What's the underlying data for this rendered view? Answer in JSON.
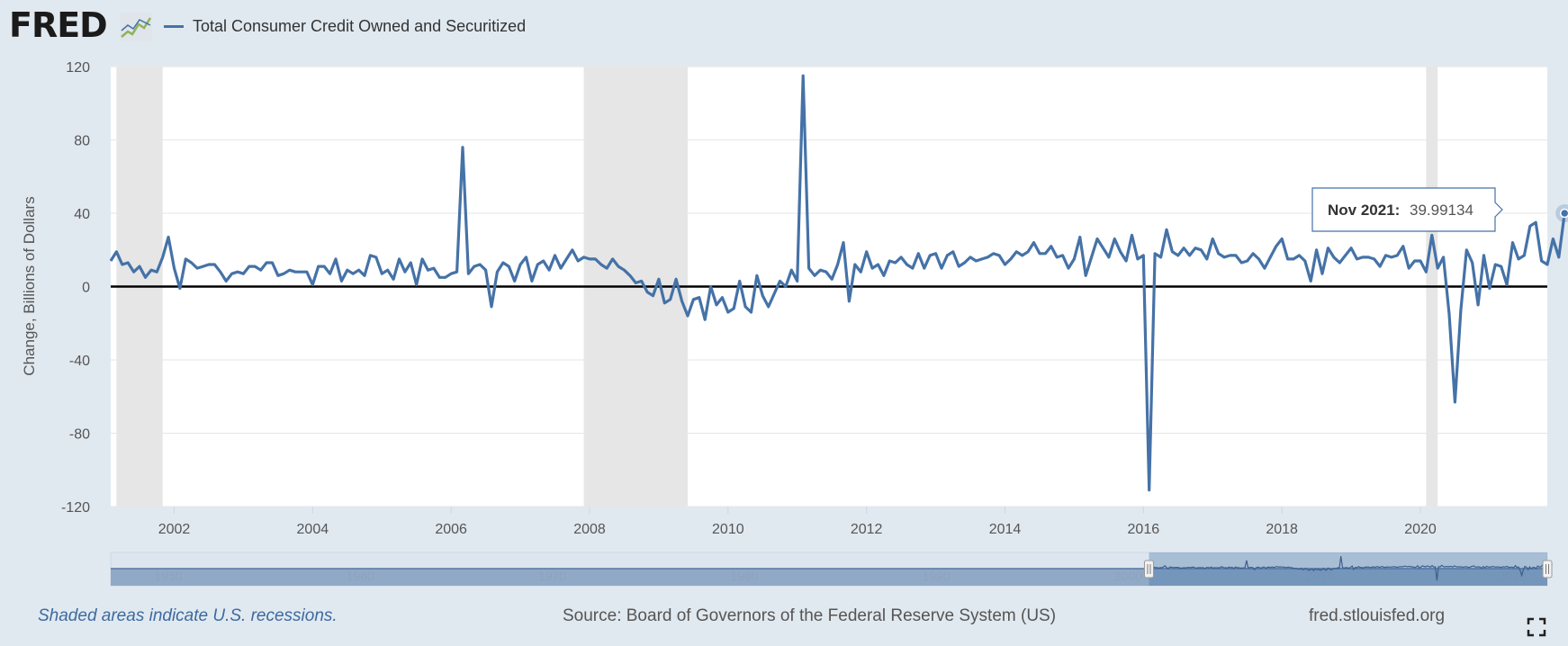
{
  "header": {
    "logo_text": "FRED",
    "logo_icon": "fred-chart-icon",
    "legend_label": "Total Consumer Credit Owned and Securitized"
  },
  "colors": {
    "background": "#e1e9f0",
    "plot_background": "#ffffff",
    "series_line": "#4572a7",
    "recession_band": "#e6e6e6",
    "zero_line": "#000000"
  },
  "chart_data": {
    "type": "line",
    "title": "",
    "xlabel": "",
    "ylabel": "Change, Billions of Dollars",
    "ylim": [
      -120,
      120
    ],
    "yticks": [
      -120,
      -80,
      -40,
      0,
      40,
      80,
      120
    ],
    "xlim": [
      "2001-02-01",
      "2021-11-01"
    ],
    "xticks": [
      "2002",
      "2004",
      "2006",
      "2008",
      "2010",
      "2012",
      "2014",
      "2016",
      "2018",
      "2020"
    ],
    "grid": true,
    "reference_line": 0,
    "recessions": [
      {
        "start": "2001-03-01",
        "end": "2001-11-01"
      },
      {
        "start": "2007-12-01",
        "end": "2009-06-01"
      },
      {
        "start": "2020-02-01",
        "end": "2020-04-01"
      }
    ],
    "series": [
      {
        "name": "Total Consumer Credit Owned and Securitized",
        "frequency": "monthly",
        "start": "2001-02-01",
        "values": [
          14,
          19,
          12,
          13,
          8,
          11,
          5,
          9,
          8,
          16,
          27,
          10,
          -1,
          15,
          13,
          10,
          11,
          12,
          12,
          8,
          3,
          7,
          8,
          7,
          11,
          11,
          9,
          13,
          13,
          6,
          7,
          9,
          8,
          8,
          8,
          1,
          11,
          11,
          7,
          15,
          3,
          9,
          7,
          9,
          6,
          17,
          16,
          7,
          9,
          4,
          15,
          8,
          13,
          1,
          15,
          9,
          10,
          5,
          5,
          7,
          8,
          76,
          7,
          11,
          12,
          9,
          -11,
          8,
          13,
          11,
          3,
          12,
          16,
          3,
          12,
          14,
          9,
          17,
          10,
          15,
          20,
          14,
          16,
          15,
          15,
          12,
          10,
          15,
          11,
          9,
          6,
          2,
          3,
          -3,
          -5,
          4,
          -9,
          -7,
          4,
          -8,
          -16,
          -7,
          -6,
          -18,
          0,
          -10,
          -6,
          -14,
          -12,
          3,
          -11,
          -14,
          6,
          -5,
          -11,
          -4,
          3,
          0,
          9,
          3,
          115,
          10,
          6,
          9,
          8,
          4,
          12,
          24,
          -8,
          12,
          8,
          19,
          10,
          12,
          6,
          14,
          13,
          16,
          12,
          10,
          18,
          10,
          17,
          18,
          10,
          17,
          19,
          11,
          13,
          16,
          14,
          15,
          16,
          18,
          17,
          12,
          15,
          19,
          17,
          19,
          24,
          18,
          18,
          22,
          16,
          17,
          10,
          15,
          27,
          6,
          16,
          26,
          21,
          16,
          26,
          19,
          14,
          28,
          15,
          17,
          -111,
          18,
          16,
          31,
          19,
          17,
          21,
          17,
          21,
          20,
          15,
          26,
          18,
          16,
          17,
          17,
          13,
          14,
          18,
          15,
          10,
          16,
          22,
          26,
          15,
          15,
          17,
          14,
          3,
          20,
          7,
          21,
          16,
          13,
          17,
          21,
          15,
          16,
          16,
          15,
          11,
          17,
          16,
          17,
          22,
          10,
          14,
          14,
          8,
          28,
          10,
          16,
          -15,
          -63,
          -13,
          20,
          13,
          -10,
          17,
          -1,
          12,
          11,
          1,
          24,
          15,
          17,
          33,
          35,
          14,
          12,
          26,
          16,
          40
        ]
      }
    ],
    "tooltip": {
      "label": "Nov 2021:",
      "value": "39.99134"
    }
  },
  "navigator": {
    "ticks": [
      "1950",
      "1960",
      "1970",
      "1980",
      "1990",
      "2000",
      "2010",
      "2020"
    ],
    "range_start": "2001-02-01",
    "range_end": "2021-11-01"
  },
  "footer": {
    "note": "Shaded areas indicate U.S. recessions.",
    "source": "Source: Board of Governors of the Federal Reserve System (US)",
    "url": "fred.stlouisfed.org",
    "fullscreen_icon": "fullscreen-icon"
  }
}
